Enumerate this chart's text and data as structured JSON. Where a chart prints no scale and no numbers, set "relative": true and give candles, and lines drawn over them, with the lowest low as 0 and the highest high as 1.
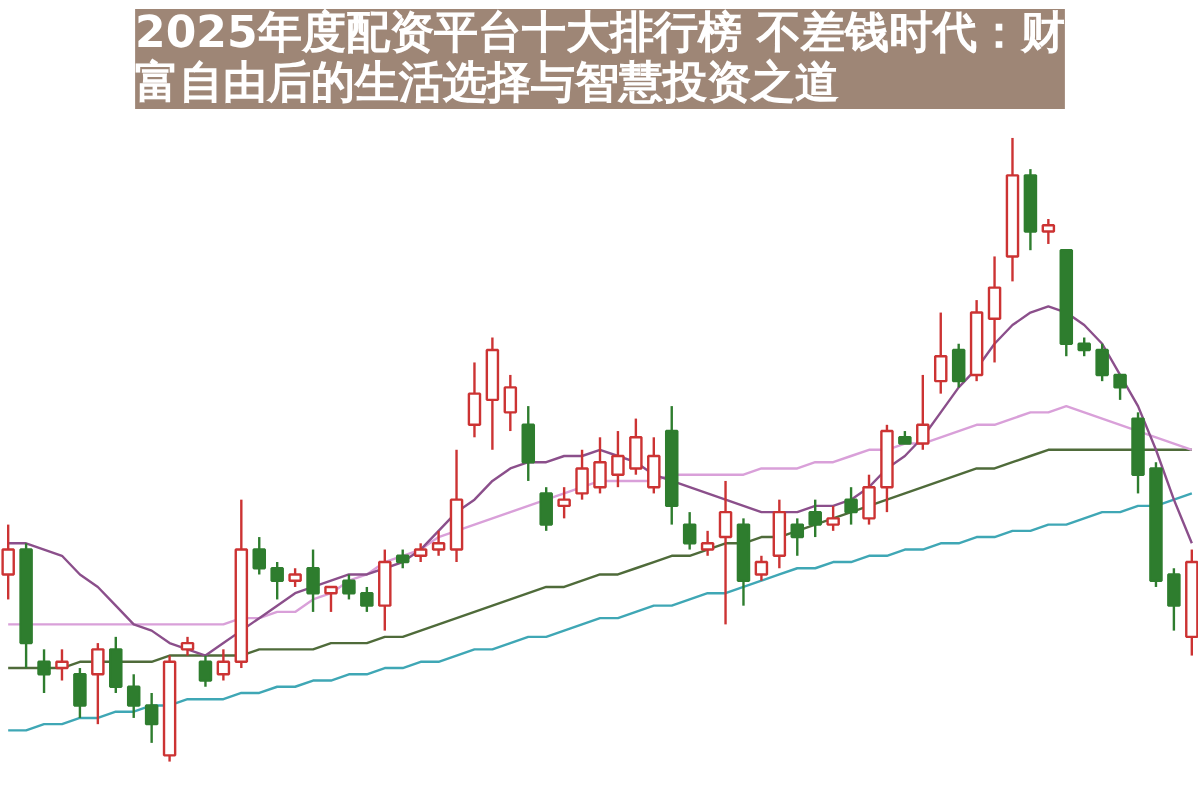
{
  "chart_data": {
    "type": "candlestick",
    "title": "2025年度配资平台十大排行榜 不差钱时代：财富自由后的生活选择与智慧投资之道",
    "relative": true,
    "categories": [
      null,
      null,
      null,
      null,
      null,
      null,
      null,
      null,
      null,
      null,
      null,
      null,
      null,
      null,
      null,
      null,
      null,
      null,
      null,
      null,
      null,
      null,
      null,
      null,
      null,
      null,
      null,
      null,
      null,
      null,
      null,
      null,
      null,
      null,
      null,
      null,
      null,
      null,
      null,
      null,
      null,
      null,
      null,
      null,
      null,
      null,
      null,
      null,
      null,
      null,
      null,
      null,
      null,
      null,
      null,
      null,
      null,
      null,
      null,
      null,
      null,
      null,
      null,
      null,
      null,
      null,
      null
    ],
    "colors": [
      "#cc3333",
      "#2e7d2e",
      "#2e7d2e",
      "#cc3333",
      "#2e7d2e",
      "#cc3333",
      "#2e7d2e",
      "#2e7d2e",
      "#2e7d2e",
      "#cc3333",
      "#cc3333",
      "#2e7d2e",
      "#cc3333",
      "#cc3333",
      "#2e7d2e",
      "#2e7d2e",
      "#cc3333",
      "#2e7d2e",
      "#cc3333",
      "#2e7d2e",
      "#2e7d2e",
      "#cc3333",
      "#2e7d2e",
      "#cc3333",
      "#cc3333",
      "#cc3333",
      "#cc3333",
      "#cc3333",
      "#cc3333",
      "#2e7d2e",
      "#2e7d2e",
      "#cc3333",
      "#cc3333",
      "#cc3333",
      "#cc3333",
      "#cc3333",
      "#cc3333",
      "#2e7d2e",
      "#2e7d2e",
      "#cc3333",
      "#cc3333",
      "#2e7d2e",
      "#cc3333",
      "#cc3333",
      "#2e7d2e",
      "#2e7d2e",
      "#cc3333",
      "#2e7d2e",
      "#cc3333",
      "#cc3333",
      "#2e7d2e",
      "#cc3333",
      "#cc3333",
      "#2e7d2e",
      "#cc3333",
      "#cc3333",
      "#cc3333",
      "#2e7d2e",
      "#cc3333",
      "#2e7d2e",
      "#2e7d2e",
      "#2e7d2e",
      "#2e7d2e",
      "#2e7d2e",
      "#2e7d2e",
      "#2e7d2e",
      "#cc3333"
    ],
    "ohlc": [
      [
        0.3,
        0.38,
        0.26,
        0.34
      ],
      [
        0.34,
        0.35,
        0.15,
        0.19
      ],
      [
        0.16,
        0.18,
        0.11,
        0.14
      ],
      [
        0.15,
        0.18,
        0.13,
        0.16
      ],
      [
        0.14,
        0.15,
        0.07,
        0.09
      ],
      [
        0.14,
        0.19,
        0.06,
        0.18
      ],
      [
        0.18,
        0.2,
        0.11,
        0.12
      ],
      [
        0.12,
        0.14,
        0.07,
        0.09
      ],
      [
        0.09,
        0.11,
        0.03,
        0.06
      ],
      [
        0.01,
        0.17,
        0,
        0.16
      ],
      [
        0.18,
        0.2,
        0.17,
        0.19
      ],
      [
        0.16,
        0.17,
        0.12,
        0.13
      ],
      [
        0.14,
        0.18,
        0.13,
        0.16
      ],
      [
        0.16,
        0.42,
        0.15,
        0.34
      ],
      [
        0.34,
        0.36,
        0.3,
        0.31
      ],
      [
        0.31,
        0.32,
        0.26,
        0.29
      ],
      [
        0.29,
        0.31,
        0.28,
        0.3
      ],
      [
        0.31,
        0.34,
        0.24,
        0.27
      ],
      [
        0.27,
        0.28,
        0.24,
        0.28
      ],
      [
        0.29,
        0.3,
        0.26,
        0.27
      ],
      [
        0.27,
        0.28,
        0.24,
        0.25
      ],
      [
        0.25,
        0.34,
        0.21,
        0.32
      ],
      [
        0.33,
        0.34,
        0.31,
        0.32
      ],
      [
        0.33,
        0.35,
        0.32,
        0.34
      ],
      [
        0.34,
        0.37,
        0.33,
        0.35
      ],
      [
        0.34,
        0.5,
        0.32,
        0.42
      ],
      [
        0.54,
        0.64,
        0.52,
        0.59
      ],
      [
        0.58,
        0.68,
        0.5,
        0.66
      ],
      [
        0.56,
        0.62,
        0.53,
        0.6
      ],
      [
        0.54,
        0.57,
        0.45,
        0.48
      ],
      [
        0.43,
        0.44,
        0.37,
        0.38
      ],
      [
        0.41,
        0.44,
        0.39,
        0.42
      ],
      [
        0.43,
        0.5,
        0.42,
        0.47
      ],
      [
        0.44,
        0.52,
        0.43,
        0.48
      ],
      [
        0.46,
        0.53,
        0.44,
        0.49
      ],
      [
        0.47,
        0.55,
        0.46,
        0.52
      ],
      [
        0.44,
        0.52,
        0.43,
        0.49
      ],
      [
        0.53,
        0.57,
        0.38,
        0.41
      ],
      [
        0.38,
        0.4,
        0.34,
        0.35
      ],
      [
        0.34,
        0.37,
        0.33,
        0.35
      ],
      [
        0.36,
        0.45,
        0.22,
        0.4
      ],
      [
        0.38,
        0.39,
        0.25,
        0.29
      ],
      [
        0.3,
        0.33,
        0.29,
        0.32
      ],
      [
        0.33,
        0.42,
        0.31,
        0.4
      ],
      [
        0.38,
        0.39,
        0.33,
        0.36
      ],
      [
        0.4,
        0.42,
        0.36,
        0.38
      ],
      [
        0.38,
        0.41,
        0.37,
        0.39
      ],
      [
        0.42,
        0.44,
        0.38,
        0.4
      ],
      [
        0.39,
        0.46,
        0.38,
        0.44
      ],
      [
        0.44,
        0.54,
        0.4,
        0.53
      ],
      [
        0.52,
        0.53,
        0.51,
        0.51
      ],
      [
        0.51,
        0.62,
        0.5,
        0.54
      ],
      [
        0.61,
        0.72,
        0.59,
        0.65
      ],
      [
        0.66,
        0.67,
        0.6,
        0.61
      ],
      [
        0.62,
        0.74,
        0.61,
        0.72
      ],
      [
        0.71,
        0.81,
        0.64,
        0.76
      ],
      [
        0.81,
        1.0,
        0.77,
        0.94
      ],
      [
        0.94,
        0.95,
        0.82,
        0.85
      ],
      [
        0.85,
        0.87,
        0.83,
        0.86
      ],
      [
        0.82,
        0.82,
        0.65,
        0.67
      ],
      [
        0.67,
        0.68,
        0.65,
        0.66
      ],
      [
        0.66,
        0.67,
        0.61,
        0.62
      ],
      [
        0.62,
        0.62,
        0.58,
        0.6
      ],
      [
        0.55,
        0.56,
        0.43,
        0.46
      ],
      [
        0.47,
        0.48,
        0.28,
        0.29
      ],
      [
        0.3,
        0.31,
        0.21,
        0.25
      ],
      [
        0.2,
        0.34,
        0.17,
        0.32
      ]
    ],
    "series": [
      {
        "type": "line",
        "color": "#3fa7b5",
        "values": [
          0.05,
          0.05,
          0.06,
          0.06,
          0.07,
          0.07,
          0.08,
          0.08,
          0.09,
          0.09,
          0.1,
          0.1,
          0.1,
          0.11,
          0.11,
          0.12,
          0.12,
          0.13,
          0.13,
          0.14,
          0.14,
          0.15,
          0.15,
          0.16,
          0.16,
          0.17,
          0.18,
          0.18,
          0.19,
          0.2,
          0.2,
          0.21,
          0.22,
          0.23,
          0.23,
          0.24,
          0.25,
          0.25,
          0.26,
          0.27,
          0.27,
          0.28,
          0.29,
          0.3,
          0.31,
          0.31,
          0.32,
          0.32,
          0.33,
          0.33,
          0.34,
          0.34,
          0.35,
          0.35,
          0.36,
          0.36,
          0.37,
          0.37,
          0.38,
          0.38,
          0.39,
          0.4,
          0.4,
          0.41,
          0.41,
          0.42,
          0.43
        ]
      },
      {
        "type": "line",
        "color": "#4f6b3a",
        "values": [
          0.15,
          0.15,
          0.15,
          0.15,
          0.16,
          0.16,
          0.16,
          0.16,
          0.16,
          0.17,
          0.17,
          0.17,
          0.17,
          0.17,
          0.18,
          0.18,
          0.18,
          0.18,
          0.19,
          0.19,
          0.19,
          0.2,
          0.2,
          0.21,
          0.22,
          0.23,
          0.24,
          0.25,
          0.26,
          0.27,
          0.28,
          0.28,
          0.29,
          0.3,
          0.3,
          0.31,
          0.32,
          0.33,
          0.33,
          0.34,
          0.35,
          0.35,
          0.36,
          0.36,
          0.37,
          0.38,
          0.39,
          0.4,
          0.41,
          0.42,
          0.43,
          0.44,
          0.45,
          0.46,
          0.47,
          0.47,
          0.48,
          0.49,
          0.5,
          0.5,
          0.5,
          0.5,
          0.5,
          0.5,
          0.5,
          0.5,
          0.5
        ]
      },
      {
        "type": "line",
        "color": "#d9a0d9",
        "values": [
          0.22,
          0.22,
          0.22,
          0.22,
          0.22,
          0.22,
          0.22,
          0.22,
          0.22,
          0.22,
          0.22,
          0.22,
          0.22,
          0.23,
          0.23,
          0.24,
          0.24,
          0.26,
          0.27,
          0.29,
          0.3,
          0.32,
          0.33,
          0.34,
          0.36,
          0.37,
          0.38,
          0.39,
          0.4,
          0.41,
          0.42,
          0.43,
          0.44,
          0.45,
          0.45,
          0.45,
          0.45,
          0.46,
          0.46,
          0.46,
          0.46,
          0.46,
          0.47,
          0.47,
          0.47,
          0.48,
          0.48,
          0.49,
          0.5,
          0.5,
          0.51,
          0.51,
          0.52,
          0.53,
          0.54,
          0.54,
          0.55,
          0.56,
          0.56,
          0.57,
          0.56,
          0.55,
          0.54,
          0.53,
          0.52,
          0.51,
          0.5
        ]
      },
      {
        "type": "line",
        "color": "#8b4f8b",
        "values": [
          0.35,
          0.35,
          0.34,
          0.33,
          0.3,
          0.28,
          0.25,
          0.22,
          0.21,
          0.19,
          0.18,
          0.17,
          0.19,
          0.21,
          0.23,
          0.25,
          0.27,
          0.28,
          0.29,
          0.3,
          0.3,
          0.31,
          0.32,
          0.34,
          0.37,
          0.4,
          0.42,
          0.45,
          0.47,
          0.48,
          0.48,
          0.49,
          0.49,
          0.5,
          0.49,
          0.48,
          0.46,
          0.45,
          0.44,
          0.43,
          0.42,
          0.41,
          0.4,
          0.4,
          0.4,
          0.41,
          0.41,
          0.42,
          0.44,
          0.47,
          0.49,
          0.52,
          0.56,
          0.6,
          0.63,
          0.67,
          0.7,
          0.72,
          0.73,
          0.72,
          0.7,
          0.67,
          0.62,
          0.57,
          0.5,
          0.42,
          0.35
        ]
      }
    ]
  }
}
